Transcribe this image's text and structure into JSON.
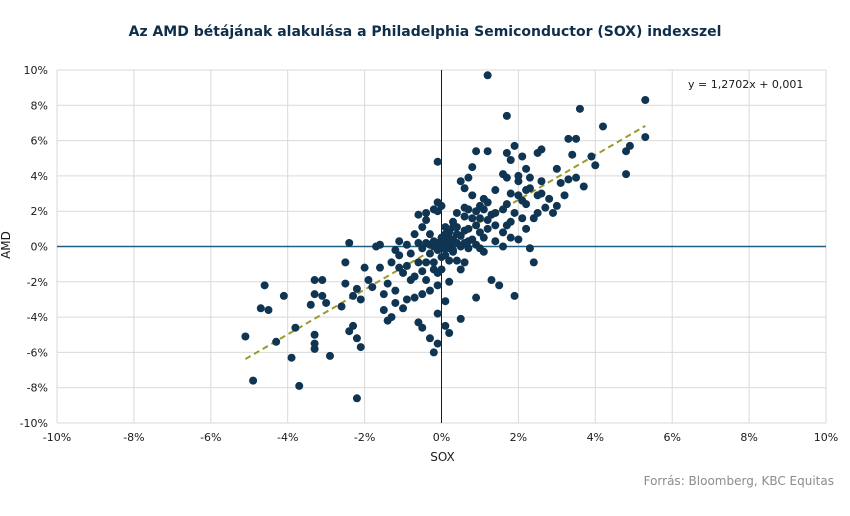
{
  "chart_data": {
    "type": "scatter",
    "title": "Az AMD bétájának alakulása a Philadelphia Semiconductor (SOX) indexszel",
    "xlabel": "SOX",
    "ylabel": "AMD",
    "xlim": [
      -0.1,
      0.1
    ],
    "ylim": [
      -0.1,
      0.1
    ],
    "x_ticks": [
      "-10%",
      "-8%",
      "-6%",
      "-4%",
      "-2%",
      "0%",
      "2%",
      "4%",
      "6%",
      "8%",
      "10%"
    ],
    "y_ticks": [
      "10%",
      "8%",
      "6%",
      "4%",
      "2%",
      "0%",
      "-2%",
      "-4%",
      "-6%",
      "-8%",
      "-10%"
    ],
    "grid": true,
    "equation_label": "y = 1,2702x + 0,001",
    "trendline": {
      "slope": 1.2702,
      "intercept": 0.001,
      "x_range": [
        -0.051,
        0.053
      ],
      "color": "#9a9a2a",
      "style": "dashed"
    },
    "marker_color": "#0f3552",
    "axis_line_color": "#1f5f80",
    "points": [
      [
        -0.051,
        -0.051
      ],
      [
        -0.049,
        -0.076
      ],
      [
        -0.047,
        -0.035
      ],
      [
        -0.046,
        -0.022
      ],
      [
        -0.045,
        -0.036
      ],
      [
        -0.043,
        -0.054
      ],
      [
        -0.041,
        -0.028
      ],
      [
        -0.038,
        -0.046
      ],
      [
        -0.039,
        -0.063
      ],
      [
        -0.037,
        -0.079
      ],
      [
        -0.034,
        -0.033
      ],
      [
        -0.033,
        -0.019
      ],
      [
        -0.033,
        -0.027
      ],
      [
        -0.033,
        -0.05
      ],
      [
        -0.033,
        -0.055
      ],
      [
        -0.033,
        -0.058
      ],
      [
        -0.031,
        -0.028
      ],
      [
        -0.031,
        -0.019
      ],
      [
        -0.03,
        -0.032
      ],
      [
        -0.029,
        -0.062
      ],
      [
        -0.026,
        -0.034
      ],
      [
        -0.025,
        -0.009
      ],
      [
        -0.025,
        -0.021
      ],
      [
        -0.024,
        0.002
      ],
      [
        -0.024,
        -0.048
      ],
      [
        -0.023,
        -0.028
      ],
      [
        -0.023,
        -0.045
      ],
      [
        -0.022,
        -0.024
      ],
      [
        -0.022,
        -0.052
      ],
      [
        -0.022,
        -0.086
      ],
      [
        -0.021,
        -0.03
      ],
      [
        -0.021,
        -0.057
      ],
      [
        -0.02,
        -0.012
      ],
      [
        -0.019,
        -0.019
      ],
      [
        -0.018,
        -0.023
      ],
      [
        -0.017,
        0.0
      ],
      [
        -0.016,
        0.001
      ],
      [
        -0.016,
        -0.012
      ],
      [
        -0.015,
        -0.027
      ],
      [
        -0.015,
        -0.036
      ],
      [
        -0.014,
        -0.021
      ],
      [
        -0.014,
        -0.042
      ],
      [
        -0.013,
        -0.009
      ],
      [
        -0.013,
        -0.04
      ],
      [
        -0.012,
        -0.002
      ],
      [
        -0.012,
        -0.025
      ],
      [
        -0.012,
        -0.032
      ],
      [
        -0.011,
        0.003
      ],
      [
        -0.011,
        -0.005
      ],
      [
        -0.011,
        -0.012
      ],
      [
        -0.01,
        -0.015
      ],
      [
        -0.01,
        -0.035
      ],
      [
        -0.009,
        0.001
      ],
      [
        -0.009,
        -0.011
      ],
      [
        -0.009,
        -0.03
      ],
      [
        -0.008,
        -0.004
      ],
      [
        -0.008,
        -0.019
      ],
      [
        -0.007,
        0.007
      ],
      [
        -0.007,
        -0.017
      ],
      [
        -0.007,
        -0.029
      ],
      [
        -0.006,
        0.002
      ],
      [
        -0.006,
        0.018
      ],
      [
        -0.006,
        -0.009
      ],
      [
        -0.006,
        -0.043
      ],
      [
        -0.005,
        -0.001
      ],
      [
        -0.005,
        0.011
      ],
      [
        -0.005,
        -0.014
      ],
      [
        -0.005,
        -0.027
      ],
      [
        -0.005,
        -0.046
      ],
      [
        -0.004,
        0.002
      ],
      [
        -0.004,
        -0.009
      ],
      [
        -0.004,
        0.015
      ],
      [
        -0.004,
        0.019
      ],
      [
        -0.004,
        -0.019
      ],
      [
        -0.003,
        0.001
      ],
      [
        -0.003,
        -0.004
      ],
      [
        -0.003,
        0.007
      ],
      [
        -0.003,
        -0.025
      ],
      [
        -0.003,
        -0.052
      ],
      [
        -0.002,
        0.0
      ],
      [
        -0.002,
        -0.013
      ],
      [
        -0.002,
        -0.009
      ],
      [
        -0.002,
        0.003
      ],
      [
        -0.002,
        -0.06
      ],
      [
        -0.001,
        0.002
      ],
      [
        -0.001,
        -0.002
      ],
      [
        -0.001,
        -0.015
      ],
      [
        -0.001,
        -0.022
      ],
      [
        -0.001,
        -0.038
      ],
      [
        -0.001,
        -0.055
      ],
      [
        -0.001,
        0.02
      ],
      [
        0.0,
        0.002
      ],
      [
        0.0,
        -0.001
      ],
      [
        0.0,
        0.005
      ],
      [
        0.0,
        -0.006
      ],
      [
        0.0,
        -0.013
      ],
      [
        0.0,
        0.023
      ],
      [
        -0.002,
        0.021
      ],
      [
        -0.001,
        0.025
      ],
      [
        0.001,
        0.003
      ],
      [
        0.001,
        -0.001
      ],
      [
        0.001,
        0.007
      ],
      [
        0.001,
        -0.005
      ],
      [
        0.001,
        0.011
      ],
      [
        0.001,
        -0.031
      ],
      [
        0.001,
        -0.045
      ],
      [
        -0.001,
        0.048
      ],
      [
        0.002,
        0.001
      ],
      [
        0.002,
        -0.001
      ],
      [
        0.002,
        0.005
      ],
      [
        0.002,
        0.008
      ],
      [
        0.002,
        -0.008
      ],
      [
        0.002,
        -0.02
      ],
      [
        0.002,
        -0.049
      ],
      [
        0.003,
        0.002
      ],
      [
        0.003,
        0.011
      ],
      [
        0.003,
        -0.002
      ],
      [
        0.003,
        0.004
      ],
      [
        0.003,
        -0.003
      ],
      [
        0.003,
        0.014
      ],
      [
        0.004,
        0.002
      ],
      [
        0.004,
        -0.008
      ],
      [
        0.004,
        0.007
      ],
      [
        0.004,
        0.019
      ],
      [
        0.004,
        0.011
      ],
      [
        0.005,
        0.0
      ],
      [
        0.005,
        0.006
      ],
      [
        0.005,
        -0.013
      ],
      [
        0.005,
        0.037
      ],
      [
        0.005,
        -0.041
      ],
      [
        0.006,
        0.002
      ],
      [
        0.006,
        0.009
      ],
      [
        0.006,
        0.017
      ],
      [
        0.006,
        0.022
      ],
      [
        0.006,
        -0.009
      ],
      [
        0.006,
        0.033
      ],
      [
        0.007,
        0.003
      ],
      [
        0.007,
        0.01
      ],
      [
        0.007,
        0.021
      ],
      [
        0.007,
        0.039
      ],
      [
        0.007,
        -0.001
      ],
      [
        0.008,
        0.004
      ],
      [
        0.008,
        0.016
      ],
      [
        0.008,
        0.029
      ],
      [
        0.008,
        0.045
      ],
      [
        0.009,
        0.001
      ],
      [
        0.009,
        0.012
      ],
      [
        0.009,
        0.02
      ],
      [
        0.009,
        0.054
      ],
      [
        0.009,
        -0.029
      ],
      [
        0.01,
        0.008
      ],
      [
        0.01,
        0.016
      ],
      [
        0.01,
        0.023
      ],
      [
        0.01,
        -0.001
      ],
      [
        0.011,
        0.005
      ],
      [
        0.011,
        0.021
      ],
      [
        0.011,
        0.027
      ],
      [
        0.011,
        -0.003
      ],
      [
        0.012,
        0.01
      ],
      [
        0.012,
        0.015
      ],
      [
        0.012,
        0.025
      ],
      [
        0.012,
        0.054
      ],
      [
        0.012,
        0.097
      ],
      [
        0.013,
        0.018
      ],
      [
        0.013,
        -0.019
      ],
      [
        0.014,
        0.003
      ],
      [
        0.014,
        0.012
      ],
      [
        0.014,
        0.032
      ],
      [
        0.014,
        0.019
      ],
      [
        0.015,
        -0.022
      ],
      [
        0.016,
        0.0
      ],
      [
        0.016,
        0.021
      ],
      [
        0.016,
        0.041
      ],
      [
        0.016,
        0.008
      ],
      [
        0.017,
        0.012
      ],
      [
        0.017,
        0.024
      ],
      [
        0.017,
        0.074
      ],
      [
        0.017,
        0.039
      ],
      [
        0.017,
        0.053
      ],
      [
        0.018,
        0.005
      ],
      [
        0.018,
        0.014
      ],
      [
        0.018,
        0.03
      ],
      [
        0.018,
        0.049
      ],
      [
        0.019,
        0.019
      ],
      [
        0.019,
        -0.028
      ],
      [
        0.019,
        0.057
      ],
      [
        0.02,
        0.004
      ],
      [
        0.02,
        0.029
      ],
      [
        0.02,
        0.04
      ],
      [
        0.02,
        0.037
      ],
      [
        0.021,
        0.016
      ],
      [
        0.021,
        0.051
      ],
      [
        0.021,
        0.026
      ],
      [
        0.022,
        0.01
      ],
      [
        0.022,
        0.032
      ],
      [
        0.022,
        0.044
      ],
      [
        0.022,
        0.024
      ],
      [
        0.023,
        -0.001
      ],
      [
        0.023,
        0.033
      ],
      [
        0.023,
        0.039
      ],
      [
        0.024,
        0.016
      ],
      [
        0.024,
        -0.009
      ],
      [
        0.025,
        0.019
      ],
      [
        0.025,
        0.029
      ],
      [
        0.025,
        0.053
      ],
      [
        0.026,
        0.037
      ],
      [
        0.026,
        0.03
      ],
      [
        0.026,
        0.055
      ],
      [
        0.027,
        0.022
      ],
      [
        0.028,
        0.027
      ],
      [
        0.029,
        0.019
      ],
      [
        0.03,
        0.023
      ],
      [
        0.03,
        0.044
      ],
      [
        0.031,
        0.036
      ],
      [
        0.032,
        0.029
      ],
      [
        0.033,
        0.061
      ],
      [
        0.033,
        0.038
      ],
      [
        0.034,
        0.052
      ],
      [
        0.035,
        0.039
      ],
      [
        0.035,
        0.061
      ],
      [
        0.036,
        0.078
      ],
      [
        0.037,
        0.034
      ],
      [
        0.039,
        0.051
      ],
      [
        0.04,
        0.046
      ],
      [
        0.042,
        0.068
      ],
      [
        0.048,
        0.041
      ],
      [
        0.048,
        0.054
      ],
      [
        0.049,
        0.057
      ],
      [
        0.053,
        0.062
      ],
      [
        0.053,
        0.083
      ]
    ]
  },
  "source": "Forrás: Bloomberg,  KBC Equitas"
}
